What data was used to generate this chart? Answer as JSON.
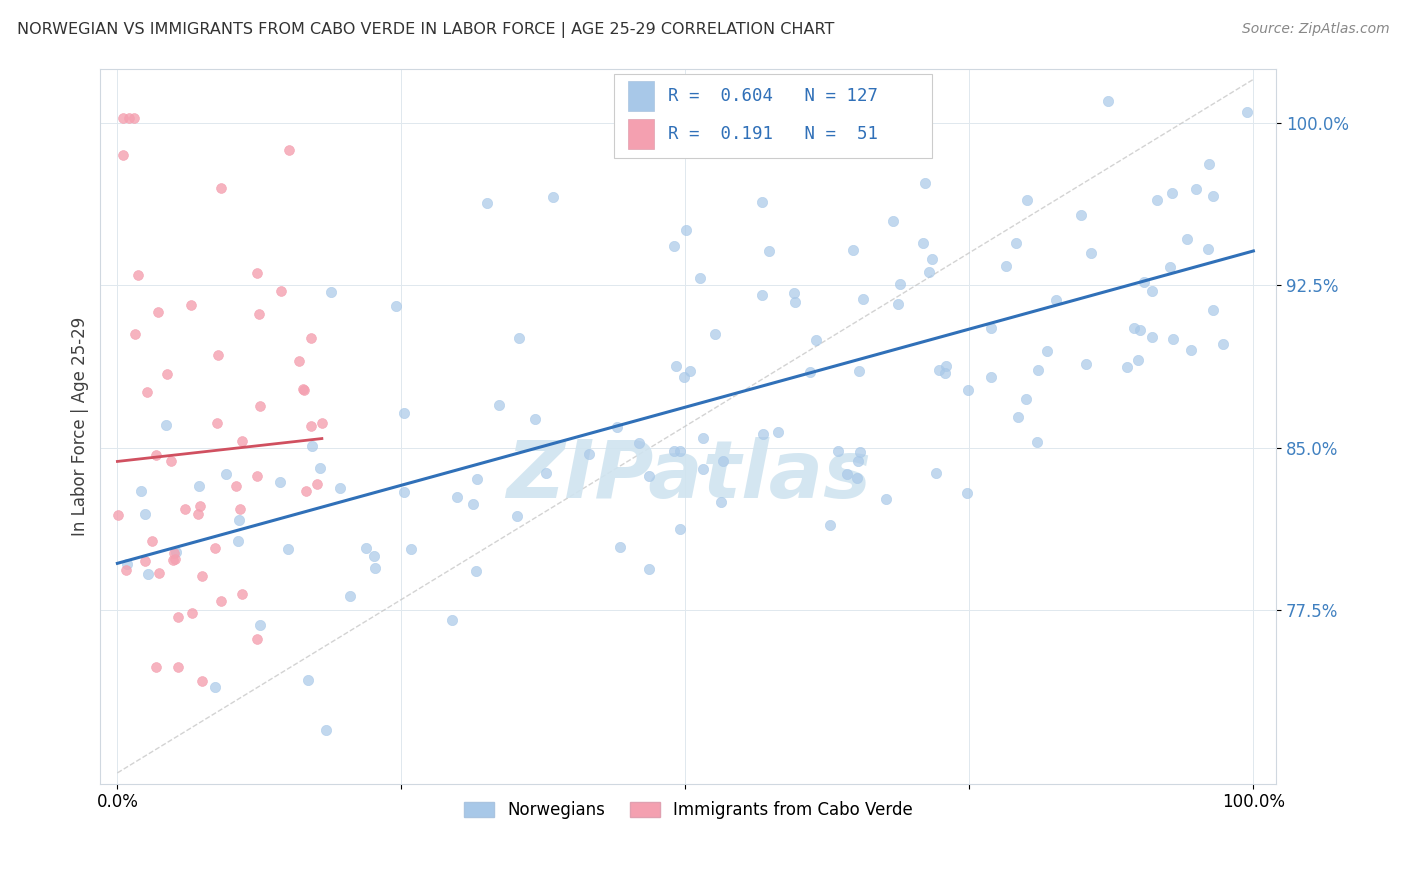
{
  "title": "NORWEGIAN VS IMMIGRANTS FROM CABO VERDE IN LABOR FORCE | AGE 25-29 CORRELATION CHART",
  "source": "Source: ZipAtlas.com",
  "ylabel": "In Labor Force | Age 25-29",
  "r_norwegian": 0.604,
  "n_norwegian": 127,
  "r_cabo_verde": 0.191,
  "n_cabo_verde": 51,
  "norwegian_color": "#a8c8e8",
  "cabo_verde_color": "#f4a0b0",
  "trendline_norwegian_color": "#3070b8",
  "trendline_cabo_verde_color": "#d05060",
  "diagonal_color": "#c8c8c8",
  "watermark_color": "#d0e4f0",
  "background_color": "#ffffff",
  "norwegians_label": "Norwegians",
  "cabo_verde_label": "Immigrants from Cabo Verde",
  "yticks": [
    0.775,
    0.85,
    0.925,
    1.0
  ],
  "ytick_labels": [
    "77.5%",
    "85.0%",
    "92.5%",
    "100.0%"
  ],
  "xtick_labels": [
    "0.0%",
    "100.0%"
  ],
  "ymin": 0.7,
  "ymax": 1.02,
  "xmin": 0.0,
  "xmax": 1.0
}
